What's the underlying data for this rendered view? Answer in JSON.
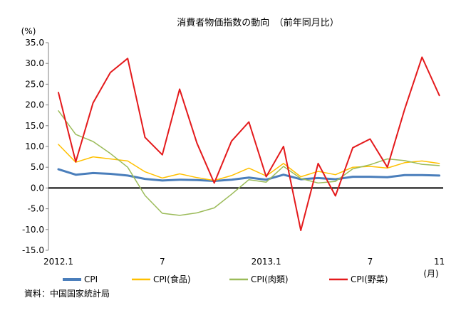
{
  "chart_data": {
    "type": "line",
    "title": "消費者物価指数の動向　（前年同月比）",
    "ylabel": "(%)",
    "ylim": [
      -15,
      35
    ],
    "yticks": [
      "35.0",
      "30.0",
      "25.0",
      "20.0",
      "15.0",
      "10.0",
      "5.0",
      "0.0",
      "-5.0",
      "-10.0",
      "-15.0"
    ],
    "ytick_values": [
      35,
      30,
      25,
      20,
      15,
      10,
      5,
      0,
      -5,
      -10,
      -15
    ],
    "x_count": 23,
    "xticks": [
      {
        "index": 0,
        "label": "2012.1"
      },
      {
        "index": 6,
        "label": "7"
      },
      {
        "index": 12,
        "label": "2013.1"
      },
      {
        "index": 18,
        "label": "7"
      },
      {
        "index": 22,
        "label": "11"
      }
    ],
    "x_unit": "(月)",
    "zero_line": true,
    "grid": false,
    "legend_position": "bottom",
    "series": [
      {
        "name": "CPI",
        "color": "#4a7ebb",
        "width": 3,
        "values": [
          4.5,
          3.2,
          3.6,
          3.4,
          3.0,
          2.2,
          1.8,
          2.0,
          1.9,
          1.7,
          2.0,
          2.5,
          2.0,
          3.2,
          2.1,
          2.4,
          2.1,
          2.7,
          2.7,
          2.6,
          3.1,
          3.1,
          3.0
        ]
      },
      {
        "name": "CPI(食品)",
        "color": "#ffc000",
        "width": 1.5,
        "values": [
          10.5,
          6.2,
          7.5,
          7.0,
          6.5,
          3.9,
          2.4,
          3.4,
          2.5,
          1.8,
          3.0,
          4.8,
          2.9,
          5.9,
          2.7,
          4.0,
          3.2,
          5.0,
          5.2,
          4.8,
          6.1,
          6.5,
          5.9
        ]
      },
      {
        "name": "CPI(肉類)",
        "color": "#9bbb59",
        "width": 1.5,
        "values": [
          18.6,
          12.9,
          11.2,
          8.3,
          5.0,
          -1.8,
          -6.1,
          -6.6,
          -6.0,
          -4.8,
          -1.5,
          2.0,
          1.4,
          5.2,
          2.3,
          1.2,
          1.6,
          4.6,
          5.6,
          7.0,
          6.6,
          5.7,
          5.4
        ]
      },
      {
        "name": "CPI(野菜)",
        "color": "#e41a1c",
        "width": 2,
        "values": [
          23.0,
          6.3,
          20.5,
          27.8,
          31.2,
          12.2,
          8.0,
          23.8,
          10.8,
          1.2,
          11.3,
          15.9,
          2.7,
          10.0,
          -10.2,
          5.9,
          -1.9,
          9.7,
          11.8,
          5.0,
          19.0,
          31.5,
          22.3
        ]
      }
    ]
  },
  "source": "資料：中国国家統計局"
}
